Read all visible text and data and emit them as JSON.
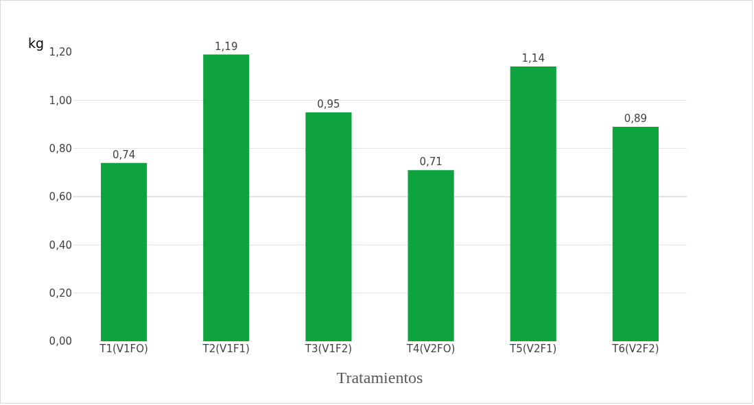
{
  "chart_data": {
    "type": "bar",
    "xlabel": "Tratamientos",
    "ylabel": "kg",
    "categories": [
      "T1(V1FO)",
      "T2(V1F1)",
      "T3(V1F2)",
      "T4(V2FO)",
      "T5(V2F1)",
      "T6(V2F2)"
    ],
    "values": [
      0.74,
      1.19,
      0.95,
      0.71,
      1.14,
      0.89
    ],
    "value_labels": [
      "0,74",
      "1,19",
      "0,95",
      "0,71",
      "1,14",
      "0,89"
    ],
    "color": "#0ea33e",
    "ylim": [
      0,
      1.2
    ],
    "yticks": [
      {
        "value": 0,
        "label": "0,00"
      },
      {
        "value": 0.2,
        "label": "0,20"
      },
      {
        "value": 0.4,
        "label": "0,40"
      },
      {
        "value": 0.6,
        "label": "0,60"
      },
      {
        "value": 0.8,
        "label": "0,80"
      },
      {
        "value": 1,
        "label": "1,00"
      },
      {
        "value": 1.2,
        "label": "1,20"
      }
    ],
    "grid": "y"
  }
}
